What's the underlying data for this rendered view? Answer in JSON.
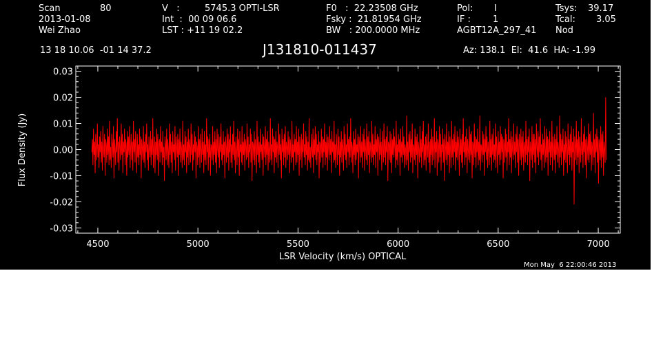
{
  "header": {
    "scan_label": "Scan",
    "scan_value": "80",
    "date": "2013-01-08",
    "observer": "Wei Zhao",
    "v_label": "V   :",
    "v_value": "5745.3 OPTI-LSR",
    "int_text": "Int  :  00 09 06.6",
    "lst_text": "LST : +11 19 02.2",
    "f0_text": "F0   :  22.23508 GHz",
    "fsky_text": "Fsky :  21.81954 GHz",
    "bw_text": "BW   : 200.0000 MHz",
    "pol_label": "Pol:",
    "pol_value": "I",
    "if_label": "IF :",
    "if_value": "1",
    "project": "AGBT12A_297_41",
    "tsys_label": "Tsys:",
    "tsys_value": "39.17",
    "tcal_label": "Tcal:",
    "tcal_value": "3.05",
    "mode": "Nod",
    "coords": "13 18 10.06  -01 14 37.2",
    "source": "J131810-011437",
    "azelha": "Az: 138.1  El:  41.6  HA: -1.99"
  },
  "footer": {
    "timestamp": "Mon May  6 22:00:46 2013"
  },
  "colors": {
    "background": "#000000",
    "trace": "#ff0000",
    "axes": "#ffffff"
  },
  "chart_data": {
    "type": "line",
    "xlabel": "LSR Velocity (km/s) OPTICAL",
    "ylabel": "Flux Density (Jy)",
    "xlim": [
      4390,
      7110
    ],
    "ylim": [
      -0.032,
      0.032
    ],
    "xticks": [
      4500,
      5000,
      5500,
      6000,
      6500,
      7000
    ],
    "xtick_labels": [
      "4500",
      "5000",
      "5500",
      "6000",
      "6500",
      "7000"
    ],
    "yticks": [
      0.03,
      0.02,
      0.01,
      0.0,
      -0.01,
      -0.02,
      -0.03
    ],
    "ytick_labels": [
      "0.03",
      "0.02",
      "0.01",
      "0.00",
      "-0.01",
      "-0.02",
      "-0.03"
    ],
    "grid": false,
    "series": [
      {
        "x_start": 4470,
        "x_end": 7040,
        "values": [
          -0.001,
          0.004,
          -0.006,
          0.008,
          -0.002,
          0.003,
          -0.009,
          0.006,
          0.001,
          -0.004,
          0.01,
          -0.003,
          0.002,
          -0.007,
          0.005,
          -0.001,
          0.007,
          -0.005,
          0.003,
          -0.008,
          0.009,
          0.0,
          -0.003,
          0.006,
          -0.01,
          0.004,
          0.002,
          -0.005,
          0.008,
          -0.002,
          0.005,
          -0.006,
          0.011,
          -0.004,
          0.001,
          -0.007,
          0.006,
          0.002,
          -0.003,
          0.009,
          -0.011,
          0.004,
          0.0,
          -0.006,
          0.007,
          -0.001,
          0.012,
          -0.005,
          0.003,
          -0.008,
          0.005,
          0.001,
          -0.004,
          0.01,
          -0.002,
          0.006,
          -0.009,
          0.003,
          -0.001,
          0.008,
          -0.006,
          0.004,
          0.002,
          -0.01,
          0.007,
          -0.003,
          0.005,
          -0.002,
          0.009,
          -0.007,
          0.001,
          0.006,
          -0.004,
          0.003,
          -0.008,
          0.011,
          -0.001,
          0.004,
          -0.005,
          0.007,
          0.0,
          -0.009,
          0.006,
          -0.003,
          0.002,
          -0.006,
          0.008,
          -0.002,
          0.005,
          -0.011,
          0.004,
          0.001,
          -0.004,
          0.009,
          -0.005,
          0.003,
          -0.007,
          0.006,
          -0.001,
          0.01,
          -0.004,
          0.002,
          -0.008,
          0.005,
          0.0,
          -0.003,
          0.007,
          -0.006,
          0.004,
          -0.002,
          0.012,
          -0.007,
          0.001,
          0.005,
          -0.009,
          0.003,
          -0.002,
          0.008,
          -0.004,
          0.006,
          -0.01,
          0.002,
          0.004,
          -0.005,
          0.009,
          -0.001,
          0.003,
          -0.006,
          0.007,
          -0.003,
          0.001,
          -0.012,
          0.005,
          0.002,
          -0.004,
          0.008,
          -0.006,
          0.004,
          0.0,
          -0.007,
          0.01,
          -0.002,
          0.006,
          -0.005,
          0.003,
          -0.009,
          0.007,
          -0.001,
          0.002,
          -0.004,
          0.009,
          -0.008,
          0.005,
          0.001,
          -0.003,
          0.006,
          -0.01,
          0.004,
          -0.002,
          0.008,
          -0.005,
          0.003,
          0.0,
          -0.007,
          0.011,
          -0.004,
          0.002,
          -0.006,
          0.007,
          -0.001,
          0.005,
          -0.009,
          0.003,
          -0.003,
          0.008,
          -0.006,
          0.004,
          0.001,
          -0.005,
          0.01,
          -0.002,
          0.006,
          -0.008,
          0.002,
          -0.004,
          0.007,
          -0.001,
          0.005,
          -0.011,
          0.003,
          0.001,
          -0.006,
          0.009,
          -0.003,
          0.004,
          -0.007,
          0.006,
          0.0,
          -0.005,
          0.008,
          -0.002,
          0.003,
          -0.009,
          0.007,
          -0.004,
          0.002,
          -0.006,
          0.012,
          -0.001,
          0.005,
          -0.008,
          0.004,
          -0.003,
          0.006,
          -0.01,
          0.002,
          0.001,
          -0.004,
          0.009,
          -0.006,
          0.003,
          -0.002,
          0.007,
          -0.005,
          0.004,
          -0.009,
          0.008,
          0.0,
          -0.003,
          0.006,
          -0.007,
          0.005,
          -0.001,
          0.01,
          -0.004,
          0.002,
          -0.006,
          0.007,
          -0.002,
          0.003,
          -0.011,
          0.005,
          0.001,
          -0.005,
          0.008,
          -0.003,
          0.006,
          -0.008,
          0.004,
          -0.001,
          0.009,
          -0.005,
          0.002,
          -0.007,
          0.006,
          -0.002,
          0.011,
          -0.004,
          0.003,
          -0.009,
          0.005,
          0.0,
          -0.006,
          0.008,
          -0.003,
          0.004,
          -0.01,
          0.007,
          -0.001,
          0.002,
          -0.005,
          0.009,
          -0.006,
          0.003,
          -0.002,
          0.006,
          -0.008,
          0.004,
          0.001,
          -0.004,
          0.01,
          -0.003,
          0.005,
          -0.007,
          0.002,
          -0.001,
          0.008,
          -0.005,
          0.006,
          -0.012,
          0.003,
          0.002,
          -0.004,
          0.007,
          -0.006,
          0.004,
          0.0,
          -0.009,
          0.011,
          -0.002,
          0.005,
          -0.005,
          0.003,
          -0.007,
          0.008,
          -0.001,
          0.002,
          -0.004,
          0.006,
          -0.01,
          0.005,
          0.001,
          -0.003,
          0.009,
          -0.006,
          0.004,
          -0.002,
          0.007,
          -0.008,
          0.003,
          0.0,
          -0.005,
          0.012,
          -0.004,
          0.002,
          -0.006,
          0.008,
          -0.001,
          0.005,
          -0.009,
          0.004,
          -0.003,
          0.007,
          -0.005,
          0.003,
          0.001,
          -0.007,
          0.01,
          -0.002,
          0.006,
          -0.004,
          0.002,
          -0.011,
          0.008,
          -0.001,
          0.004,
          -0.006,
          0.006,
          -0.003,
          0.009,
          -0.007,
          0.003,
          0.001,
          -0.004,
          0.007,
          -0.002,
          0.005,
          -0.009,
          0.004,
          0.0,
          -0.005,
          0.011,
          -0.003,
          0.002,
          -0.008,
          0.006,
          -0.001,
          0.004,
          -0.006,
          0.009,
          -0.005,
          0.003,
          -0.002,
          0.008,
          -0.01,
          0.005,
          0.001,
          -0.004,
          0.006,
          -0.007,
          0.004,
          -0.001,
          0.01,
          -0.003,
          0.002,
          -0.006,
          0.007,
          -0.002,
          0.005,
          -0.008,
          0.003,
          -0.004,
          0.012,
          -0.005,
          0.001,
          -0.007,
          0.006,
          0.0,
          -0.003,
          0.008,
          -0.009,
          0.004,
          -0.002,
          0.009,
          -0.004,
          0.006,
          -0.006,
          0.002,
          -0.001,
          0.007,
          -0.011,
          0.003,
          0.002,
          -0.005,
          0.008,
          -0.003,
          0.005,
          -0.007,
          0.004,
          -0.001,
          0.01,
          -0.006,
          0.003,
          -0.003,
          0.006,
          -0.008,
          0.005,
          0.001,
          -0.004,
          0.009,
          -0.002,
          0.004,
          -0.009,
          0.007,
          -0.001,
          0.003,
          -0.005,
          0.011,
          -0.004,
          0.002,
          -0.007,
          0.006,
          0.0,
          -0.006,
          0.008,
          -0.002,
          0.005,
          -0.01,
          0.003,
          -0.003,
          0.007,
          -0.005,
          0.004,
          0.001,
          -0.008,
          0.009,
          -0.002,
          0.006,
          -0.004,
          0.002,
          -0.007,
          0.01,
          -0.001,
          0.004,
          -0.006,
          0.005,
          -0.003,
          0.012,
          -0.005,
          0.003,
          0.001,
          -0.009,
          0.007,
          -0.002,
          0.004,
          -0.006,
          0.008,
          -0.004,
          0.002,
          -0.001,
          0.006,
          -0.011,
          0.005,
          0.002,
          -0.005,
          0.009,
          -0.003,
          0.003,
          -0.007,
          0.006,
          -0.001,
          0.008,
          -0.008,
          0.004,
          0.0,
          -0.004,
          0.01,
          -0.006,
          0.005,
          -0.002,
          0.007,
          -0.009,
          0.003,
          0.001,
          -0.005,
          0.011,
          -0.003,
          0.006,
          -0.006,
          0.002,
          -0.002,
          0.009,
          -0.007,
          0.004,
          -0.001,
          0.006,
          -0.01,
          0.005,
          0.002,
          -0.004,
          0.008,
          -0.002,
          0.003,
          -0.008,
          0.007,
          0.0,
          -0.005,
          0.01,
          -0.003,
          0.004,
          -0.006,
          0.005,
          -0.001,
          0.009,
          -0.012,
          0.003,
          0.002,
          -0.004,
          0.007,
          -0.005,
          0.006,
          -0.009,
          0.004,
          -0.002,
          0.008,
          -0.003,
          0.005,
          0.001,
          -0.007,
          0.011,
          -0.004,
          0.002,
          -0.006,
          0.006,
          -0.001,
          0.004,
          -0.01,
          0.008,
          -0.003,
          0.003,
          -0.005,
          0.009,
          -0.002,
          0.005,
          -0.007,
          0.002,
          0.0,
          -0.006,
          0.013,
          -0.004,
          0.003,
          -0.008,
          0.006,
          -0.001,
          0.007,
          -0.005,
          0.004,
          -0.003,
          0.01,
          -0.009,
          0.002,
          0.001,
          -0.004,
          0.008,
          -0.006,
          0.005,
          -0.002,
          0.006,
          -0.011,
          0.003,
          0.0,
          -0.005,
          0.009,
          -0.003,
          0.004,
          -0.007,
          0.007,
          -0.001,
          0.011,
          -0.006,
          0.002,
          -0.004,
          0.005,
          -0.008,
          0.006,
          0.001,
          -0.003,
          0.01,
          -0.005,
          0.003,
          -0.009,
          0.004,
          -0.002,
          0.008,
          -0.006,
          0.005,
          0.0,
          -0.004,
          0.012,
          -0.007,
          0.003,
          -0.001,
          0.007,
          -0.01,
          0.004,
          0.002,
          -0.005,
          0.009,
          -0.003,
          0.006,
          -0.008,
          0.002,
          -0.001,
          0.008,
          -0.005,
          0.004,
          -0.012,
          0.006,
          0.001,
          -0.004,
          0.01,
          -0.006,
          0.003,
          -0.002,
          0.007,
          -0.009,
          0.005,
          0.0,
          -0.007,
          0.011,
          -0.003,
          0.004,
          -0.006,
          0.006,
          -0.001,
          0.009,
          -0.008,
          0.003,
          -0.003,
          0.007,
          -0.004,
          0.005,
          0.001,
          -0.01,
          0.008,
          -0.002,
          0.004,
          -0.005,
          0.006,
          -0.007,
          0.012,
          -0.001,
          0.003,
          -0.006,
          0.005,
          -0.003,
          0.008,
          -0.009,
          0.004,
          0.0,
          -0.004,
          0.009,
          -0.005,
          0.006,
          -0.002,
          0.007,
          -0.011,
          0.003,
          0.002,
          -0.006,
          0.01,
          -0.003,
          0.005,
          -0.007,
          0.004,
          -0.001,
          0.008,
          -0.006,
          0.003,
          -0.004,
          0.013,
          -0.008,
          0.002,
          0.001,
          -0.005,
          0.007,
          -0.002,
          0.006,
          -0.01,
          0.004,
          -0.001,
          0.009,
          -0.004,
          0.005,
          -0.007,
          0.003,
          0.0,
          -0.006,
          0.011,
          -0.003,
          0.004,
          -0.008,
          0.006,
          -0.002,
          0.008,
          -0.005,
          0.002,
          -0.004,
          0.01,
          -0.007,
          0.005,
          0.001,
          -0.009,
          0.007,
          -0.002,
          0.003,
          -0.006,
          0.009,
          -0.004,
          0.006,
          -0.001,
          0.005,
          -0.011,
          0.004,
          0.002,
          -0.005,
          0.008,
          -0.003,
          0.006,
          -0.008,
          0.003,
          -0.001,
          0.012,
          -0.006,
          0.004,
          -0.003,
          0.007,
          -0.009,
          0.005,
          0.0,
          -0.004,
          0.01,
          -0.002,
          0.003,
          -0.007,
          0.006,
          -0.001,
          0.009,
          -0.005,
          0.004,
          -0.01,
          0.006,
          0.002,
          -0.004,
          0.008,
          -0.006,
          0.005,
          -0.003,
          0.007,
          -0.008,
          0.003,
          0.001,
          -0.005,
          0.011,
          -0.002,
          0.004,
          -0.006,
          0.005,
          -0.001,
          0.008,
          -0.012,
          0.003,
          0.0,
          -0.004,
          0.009,
          -0.007,
          0.006,
          -0.002,
          0.006,
          -0.005,
          0.004,
          -0.009,
          0.01,
          0.001,
          -0.003,
          0.007,
          -0.006,
          0.005,
          -0.001,
          0.012,
          -0.004,
          0.002,
          -0.008,
          0.006,
          -0.002,
          0.004,
          -0.007,
          0.009,
          0.0,
          -0.005,
          0.008,
          -0.003,
          0.005,
          -0.01,
          0.004,
          -0.001,
          0.007,
          -0.006,
          0.003,
          -0.003,
          0.011,
          -0.008,
          0.005,
          0.001,
          -0.004,
          0.006,
          -0.009,
          0.004,
          -0.002,
          0.009,
          -0.005,
          0.003,
          0.0,
          -0.007,
          0.013,
          -0.003,
          0.006,
          -0.006,
          0.004,
          -0.001,
          0.008,
          -0.01,
          0.002,
          -0.004,
          0.007,
          -0.005,
          0.005,
          0.001,
          -0.009,
          0.01,
          -0.002,
          0.004,
          -0.006,
          0.006,
          -0.003,
          0.009,
          -0.008,
          0.003,
          -0.001,
          0.008,
          -0.021,
          0.005,
          0.002,
          -0.004,
          0.011,
          -0.006,
          0.004,
          -0.003,
          0.007,
          -0.009,
          0.005,
          0.0,
          -0.005,
          0.012,
          -0.002,
          0.003,
          -0.007,
          0.006,
          -0.001,
          0.009,
          -0.006,
          0.004,
          -0.011,
          0.005,
          0.001,
          -0.004,
          0.01,
          -0.005,
          0.006,
          -0.002,
          0.007,
          -0.008,
          0.003,
          0.001,
          -0.006,
          0.014,
          -0.003,
          0.004,
          -0.009,
          0.006,
          -0.001,
          0.008,
          -0.005,
          0.005,
          -0.013,
          0.004,
          0.002,
          -0.004,
          0.009,
          -0.007,
          0.006,
          -0.003,
          0.007,
          -0.01,
          0.003,
          0.0,
          -0.005,
          0.02,
          -0.004
        ]
      }
    ]
  }
}
